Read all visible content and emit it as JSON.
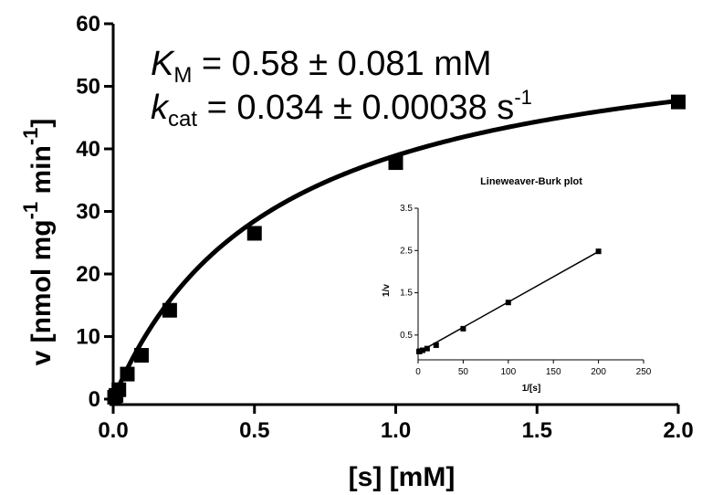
{
  "chart_data": [
    {
      "type": "scatter",
      "xlabel": "[s] [mM]",
      "ylabel": {
        "base": "v [nmol mg",
        "sup1": "-1",
        "mid": " min",
        "sup2": "-1",
        "end": "]"
      },
      "xlim": [
        0,
        2.0
      ],
      "ylim": [
        0,
        60
      ],
      "xticks": [
        "0.0",
        "0.5",
        "1.0",
        "1.5",
        "2.0"
      ],
      "yticks": [
        "0",
        "10",
        "20",
        "30",
        "40",
        "50",
        "60"
      ],
      "points": [
        {
          "x": 0.005,
          "y": 0.3
        },
        {
          "x": 0.01,
          "y": 0.6
        },
        {
          "x": 0.02,
          "y": 1.5
        },
        {
          "x": 0.05,
          "y": 4.0
        },
        {
          "x": 0.1,
          "y": 7.0
        },
        {
          "x": 0.2,
          "y": 14.2
        },
        {
          "x": 0.5,
          "y": 26.5
        },
        {
          "x": 1.0,
          "y": 37.8
        },
        {
          "x": 2.0,
          "y": 47.5
        }
      ],
      "fit": {
        "model": "michaelis-menten",
        "vmax": 61.5,
        "km": 0.58
      },
      "annotation": {
        "km_sym": "K",
        "km_sub": "M",
        "km_text": " = 0.58 ± 0.081 mM",
        "kcat_sym": "k",
        "kcat_sub": "cat",
        "kcat_text": " = 0.034 ± 0.00038 s",
        "kcat_sup": "-1"
      }
    },
    {
      "type": "scatter",
      "title": "Lineweaver-Burk plot",
      "xlabel": "1/[s]",
      "ylabel": "1/v",
      "xlim": [
        0,
        250
      ],
      "ylim": [
        0,
        3.5
      ],
      "xticks": [
        "0",
        "50",
        "100",
        "150",
        "200",
        "250"
      ],
      "yticks": [
        "0.5",
        "1.5",
        "2.5",
        "3.5"
      ],
      "points": [
        {
          "x": 1,
          "y": 0.11
        },
        {
          "x": 2,
          "y": 0.12
        },
        {
          "x": 5,
          "y": 0.14
        },
        {
          "x": 10,
          "y": 0.18
        },
        {
          "x": 20,
          "y": 0.26
        },
        {
          "x": 50,
          "y": 0.65
        },
        {
          "x": 100,
          "y": 1.27
        },
        {
          "x": 200,
          "y": 2.48
        }
      ],
      "fit": {
        "slope": 0.01195,
        "intercept": 0.085
      }
    }
  ]
}
